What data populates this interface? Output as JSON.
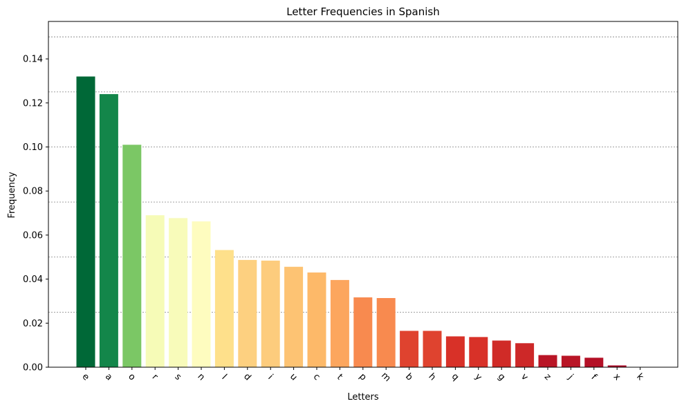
{
  "chart_data": {
    "type": "bar",
    "title": "Letter Frequencies in Spanish",
    "xlabel": "Letters",
    "ylabel": "Frequency",
    "ylim": [
      0,
      0.157
    ],
    "yticks": [
      0.0,
      0.02,
      0.04,
      0.06,
      0.08,
      0.1,
      0.12,
      0.14
    ],
    "ytick_labels": [
      "0.00",
      "0.02",
      "0.04",
      "0.06",
      "0.08",
      "0.10",
      "0.12",
      "0.14"
    ],
    "gridlines_y": [
      0.025,
      0.05,
      0.075,
      0.1,
      0.125,
      0.15
    ],
    "grid": "horizontal dashed",
    "categories": [
      "e",
      "a",
      "o",
      "r",
      "s",
      "n",
      "l",
      "d",
      "i",
      "u",
      "c",
      "t",
      "p",
      "m",
      "b",
      "h",
      "q",
      "y",
      "g",
      "v",
      "z",
      "j",
      "f",
      "x",
      "k"
    ],
    "values": [
      0.132,
      0.124,
      0.101,
      0.069,
      0.0677,
      0.0662,
      0.0532,
      0.0487,
      0.0484,
      0.0456,
      0.043,
      0.0396,
      0.0317,
      0.0314,
      0.0165,
      0.0165,
      0.014,
      0.0137,
      0.0121,
      0.0109,
      0.0055,
      0.0052,
      0.0043,
      0.0008,
      0.0001
    ],
    "colors": [
      "#006837",
      "#13864a",
      "#7bc765",
      "#f6fbb7",
      "#f8fbba",
      "#fefcbf",
      "#fee08b",
      "#fdd080",
      "#fdcc7d",
      "#fdc373",
      "#fdb969",
      "#fca65e",
      "#f88a4f",
      "#f88a4f",
      "#df432f",
      "#df432f",
      "#d83128",
      "#d83128",
      "#d02b27",
      "#cd2828",
      "#b91526",
      "#b91526",
      "#b41026",
      "#a80426",
      "#a50026"
    ],
    "colormap": "RdYlGn"
  }
}
